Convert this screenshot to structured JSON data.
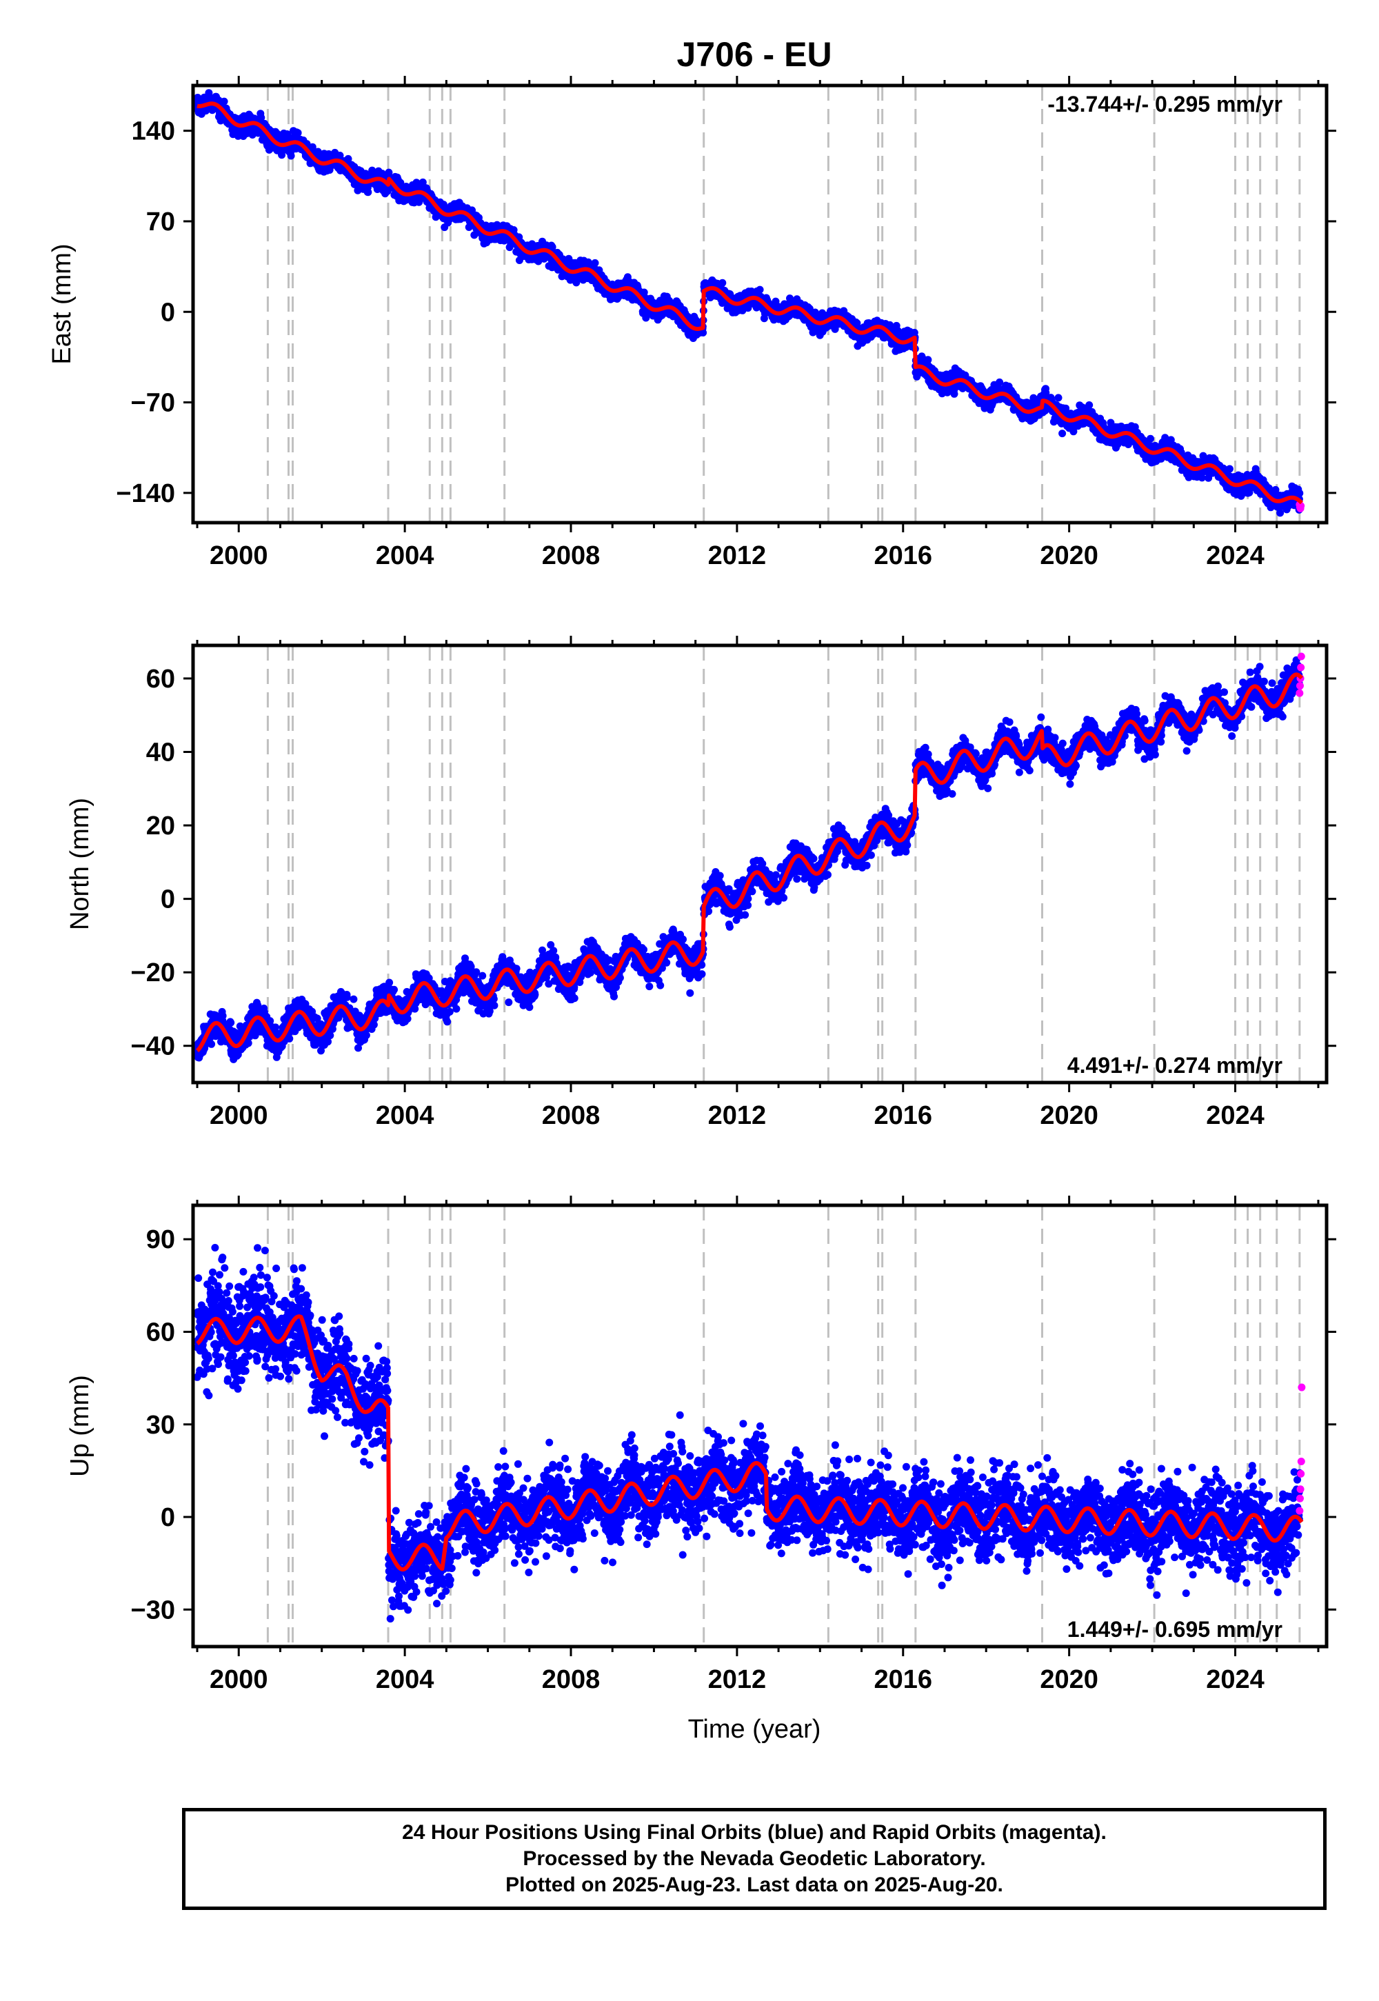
{
  "title": "J706 - EU",
  "x_axis_label": "Time (year)",
  "colors": {
    "final_orbits": "#0000ff",
    "rapid_orbits": "#ff00ff",
    "model": "#ff0000",
    "event_lines": "#c0c0c0"
  },
  "footer": {
    "line1": "24 Hour Positions Using Final Orbits (blue) and Rapid Orbits (magenta).",
    "line2": "Processed by the Nevada Geodetic Laboratory.",
    "line3": "Plotted on 2025-Aug-23. Last data on 2025-Aug-20."
  },
  "chart_data": [
    {
      "type": "scatter",
      "component": "east",
      "ylabel": "East (mm)",
      "rate_label": "-13.744+/- 0.295 mm/yr",
      "rate_label_position": "top-right",
      "xlim": [
        1998.9,
        2026.2
      ],
      "ylim": [
        -163,
        175
      ],
      "xticks": [
        2000,
        2004,
        2008,
        2012,
        2016,
        2020,
        2024
      ],
      "yticks": [
        -140,
        -70,
        0,
        70,
        140
      ],
      "event_lines": [
        2000.7,
        2001.2,
        2001.3,
        2003.6,
        2004.6,
        2004.9,
        2005.1,
        2006.4,
        2011.2,
        2014.2,
        2015.4,
        2015.5,
        2016.3,
        2019.35,
        2022.05,
        2024.0,
        2024.3,
        2024.6,
        2025.0,
        2025.55
      ],
      "model_breakpoints": {
        "x": [
          1999.0,
          2001.2,
          2003.6,
          2003.61,
          2005.0,
          2011.19,
          2011.2,
          2016.29,
          2016.3,
          2019.34,
          2019.35,
          2025.6
        ],
        "y": [
          163,
          130,
          96,
          101,
          79,
          -12,
          16,
          -22,
          -45,
          -77,
          -72,
          -150
        ]
      },
      "seasonal_amplitude": 4,
      "noise": 3.5,
      "rapid_points": {
        "x": [
          2025.55,
          2025.56,
          2025.57,
          2025.58
        ],
        "y": [
          -149,
          -151,
          -152,
          -150
        ]
      }
    },
    {
      "type": "scatter",
      "component": "north",
      "ylabel": "North (mm)",
      "rate_label": "4.491+/- 0.274 mm/yr",
      "rate_label_position": "bottom-right",
      "xlim": [
        1998.9,
        2026.2
      ],
      "ylim": [
        -50,
        69
      ],
      "xticks": [
        2000,
        2004,
        2008,
        2012,
        2016,
        2020,
        2024
      ],
      "yticks": [
        -40,
        -20,
        0,
        20,
        40,
        60
      ],
      "event_lines": [
        2000.7,
        2001.2,
        2001.3,
        2003.6,
        2004.6,
        2004.9,
        2005.1,
        2006.4,
        2011.2,
        2014.2,
        2015.4,
        2015.5,
        2016.3,
        2019.35,
        2022.05,
        2024.0,
        2024.3,
        2024.6,
        2025.0,
        2025.55
      ],
      "model_breakpoints": {
        "x": [
          1999.0,
          2003.6,
          2003.61,
          2011.19,
          2011.2,
          2016.29,
          2016.3,
          2019.34,
          2019.35,
          2025.6
        ],
        "y": [
          -38,
          -31,
          -28,
          -14,
          -2,
          21,
          33,
          43,
          38,
          58
        ]
      },
      "seasonal_amplitude": 3.5,
      "noise": 2.0,
      "rapid_points": {
        "x": [
          2025.55,
          2025.56,
          2025.57,
          2025.58,
          2025.59
        ],
        "y": [
          56,
          58,
          60,
          63,
          66
        ]
      }
    },
    {
      "type": "scatter",
      "component": "up",
      "ylabel": "Up (mm)",
      "rate_label": "1.449+/- 0.695 mm/yr",
      "rate_label_position": "bottom-right",
      "xlim": [
        1998.9,
        2026.2
      ],
      "ylim": [
        -42,
        101
      ],
      "xticks": [
        2000,
        2004,
        2008,
        2012,
        2016,
        2020,
        2024
      ],
      "yticks": [
        -30,
        0,
        30,
        60,
        90
      ],
      "event_lines": [
        2000.7,
        2001.2,
        2001.3,
        2003.6,
        2004.6,
        2004.9,
        2005.1,
        2006.4,
        2011.2,
        2014.2,
        2015.4,
        2015.5,
        2016.3,
        2019.35,
        2022.05,
        2024.0,
        2024.3,
        2024.6,
        2025.0,
        2025.55
      ],
      "model_breakpoints": {
        "x": [
          1999.0,
          2001.5,
          2002.0,
          2002.6,
          2003.2,
          2003.6,
          2003.61,
          2004.9,
          2005.0,
          2012.7,
          2012.71,
          2025.6
        ],
        "y": [
          60,
          61,
          48,
          44,
          35,
          33,
          -13,
          -13,
          -3,
          14,
          3,
          -4
        ]
      },
      "seasonal_amplitude": 4,
      "noise": 6.5,
      "rapid_points": {
        "x": [
          2025.55,
          2025.56,
          2025.57,
          2025.58,
          2025.59,
          2025.6
        ],
        "y": [
          2,
          6,
          9,
          14,
          18,
          42
        ]
      }
    }
  ]
}
